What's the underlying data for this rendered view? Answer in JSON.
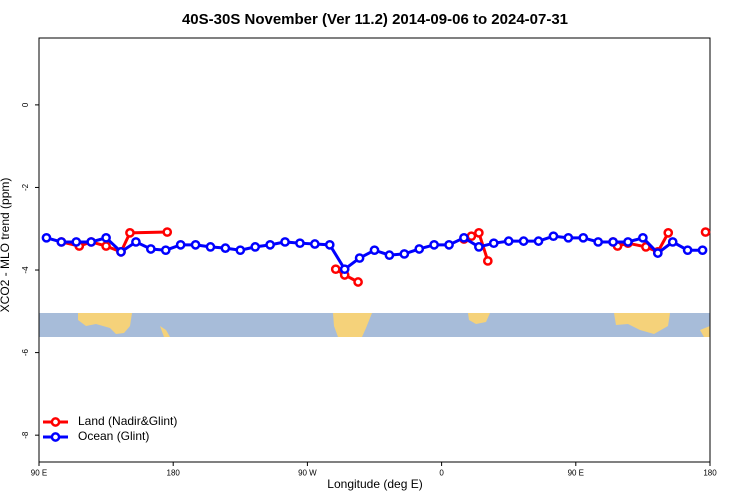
{
  "chart_data": {
    "type": "line",
    "title": "40S-30S November (Ver 11.2)   2014-09-06 to 2024-07-31",
    "xlabel": "Longitude (deg E)",
    "ylabel": "XCO2 - MLO trend (ppm)",
    "xlim": [
      90,
      540
    ],
    "ylim": [
      -8.65,
      1.62
    ],
    "xticks": [
      {
        "value": 90,
        "label": "90 E"
      },
      180,
      {
        "value": 270,
        "label": "90 W"
      },
      {
        "value": 360,
        "label": "0"
      },
      {
        "value": 450,
        "label": "90 E"
      },
      {
        "value": 540,
        "label": "180"
      }
    ],
    "yticks": [
      0,
      -2,
      -4,
      -6,
      -8
    ],
    "legend": "bottom-left",
    "series": [
      {
        "name": "Land (Nadir&Glint)",
        "color": "#ff0000",
        "x": [
          105,
          117,
          125,
          135,
          145,
          151,
          176,
          230,
          289,
          295,
          304,
          340,
          375,
          380,
          385,
          391,
          430,
          475,
          478,
          485,
          497,
          505,
          512,
          525,
          537
        ],
        "values": [
          -3.32,
          -3.42,
          -3.32,
          -3.42,
          -3.56,
          -3.1,
          -3.08,
          null,
          -3.98,
          -4.12,
          -4.29,
          null,
          -3.25,
          -3.18,
          -3.1,
          -3.78,
          null,
          -3.32,
          -3.42,
          -3.35,
          -3.44,
          -3.56,
          -3.1,
          null,
          -3.08
        ]
      },
      {
        "name": "Ocean (Glint)",
        "color": "#0000ff",
        "x": [
          95,
          105,
          115,
          125,
          135,
          145,
          155,
          165,
          175,
          185,
          195,
          205,
          215,
          225,
          235,
          245,
          255,
          265,
          275,
          285,
          295,
          305,
          315,
          325,
          335,
          345,
          355,
          365,
          375,
          385,
          395,
          405,
          415,
          425,
          435,
          445,
          455,
          465,
          475,
          485,
          495,
          505,
          515,
          525,
          535
        ],
        "values": [
          -3.22,
          -3.32,
          -3.32,
          -3.32,
          -3.22,
          -3.56,
          -3.32,
          -3.49,
          -3.52,
          -3.39,
          -3.39,
          -3.44,
          -3.47,
          -3.52,
          -3.44,
          -3.39,
          -3.32,
          -3.35,
          -3.37,
          -3.39,
          -3.98,
          -3.71,
          -3.52,
          -3.64,
          -3.61,
          -3.49,
          -3.39,
          -3.39,
          -3.22,
          -3.44,
          -3.35,
          -3.3,
          -3.3,
          -3.3,
          -3.18,
          -3.22,
          -3.22,
          -3.32,
          -3.32,
          -3.32,
          -3.22,
          -3.59,
          -3.32,
          -3.52,
          -3.52
        ]
      }
    ]
  }
}
